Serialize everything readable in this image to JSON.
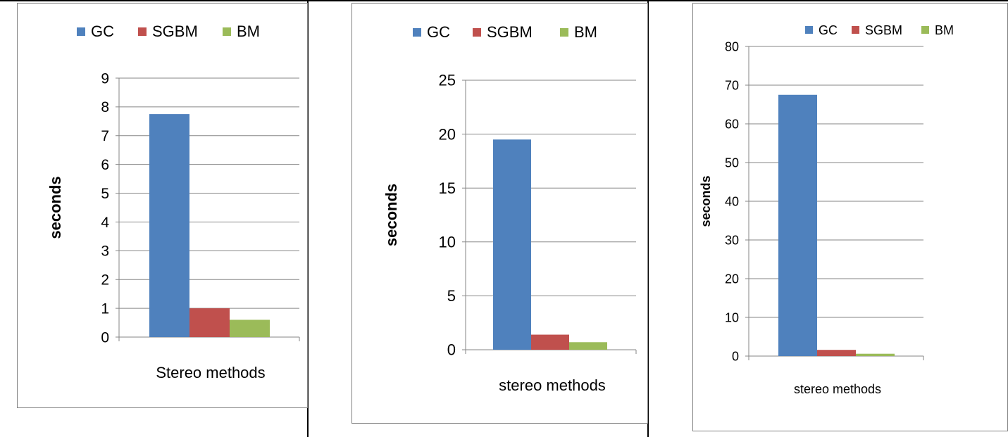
{
  "colors": {
    "GC": "#4f81bd",
    "SGBM": "#c0504d",
    "BM": "#9bbb59",
    "grid": "#868686",
    "frame": "#808080",
    "text": "#000000"
  },
  "chart_data": [
    {
      "type": "bar",
      "categories": [
        "Stereo methods"
      ],
      "series": [
        {
          "name": "GC",
          "values": [
            7.75
          ]
        },
        {
          "name": "SGBM",
          "values": [
            1.0
          ]
        },
        {
          "name": "BM",
          "values": [
            0.6
          ]
        }
      ],
      "xlabel": "Stereo methods",
      "ylabel": "seconds",
      "ylim": [
        0,
        9
      ],
      "yticks": [
        "0",
        "1",
        "2",
        "3",
        "4",
        "5",
        "6",
        "7",
        "8",
        "9"
      ],
      "legend": [
        "GC",
        "SGBM",
        "BM"
      ],
      "legend_position": "top",
      "grid": true
    },
    {
      "type": "bar",
      "categories": [
        "stereo methods"
      ],
      "series": [
        {
          "name": "GC",
          "values": [
            19.5
          ]
        },
        {
          "name": "SGBM",
          "values": [
            1.4
          ]
        },
        {
          "name": "BM",
          "values": [
            0.7
          ]
        }
      ],
      "xlabel": "stereo methods",
      "ylabel": "seconds",
      "ylim": [
        0,
        25
      ],
      "yticks": [
        "0",
        "5",
        "10",
        "15",
        "20",
        "25"
      ],
      "legend": [
        "GC",
        "SGBM",
        "BM"
      ],
      "legend_position": "top",
      "grid": true
    },
    {
      "type": "bar",
      "categories": [
        "stereo methods"
      ],
      "series": [
        {
          "name": "GC",
          "values": [
            67.5
          ]
        },
        {
          "name": "SGBM",
          "values": [
            1.6
          ]
        },
        {
          "name": "BM",
          "values": [
            0.6
          ]
        }
      ],
      "xlabel": "stereo methods",
      "ylabel": "seconds",
      "ylim": [
        0,
        80
      ],
      "yticks": [
        "0",
        "10",
        "20",
        "30",
        "40",
        "50",
        "60",
        "70",
        "80"
      ],
      "legend": [
        "GC",
        "SGBM",
        "BM"
      ],
      "legend_position": "top",
      "grid": true
    }
  ]
}
